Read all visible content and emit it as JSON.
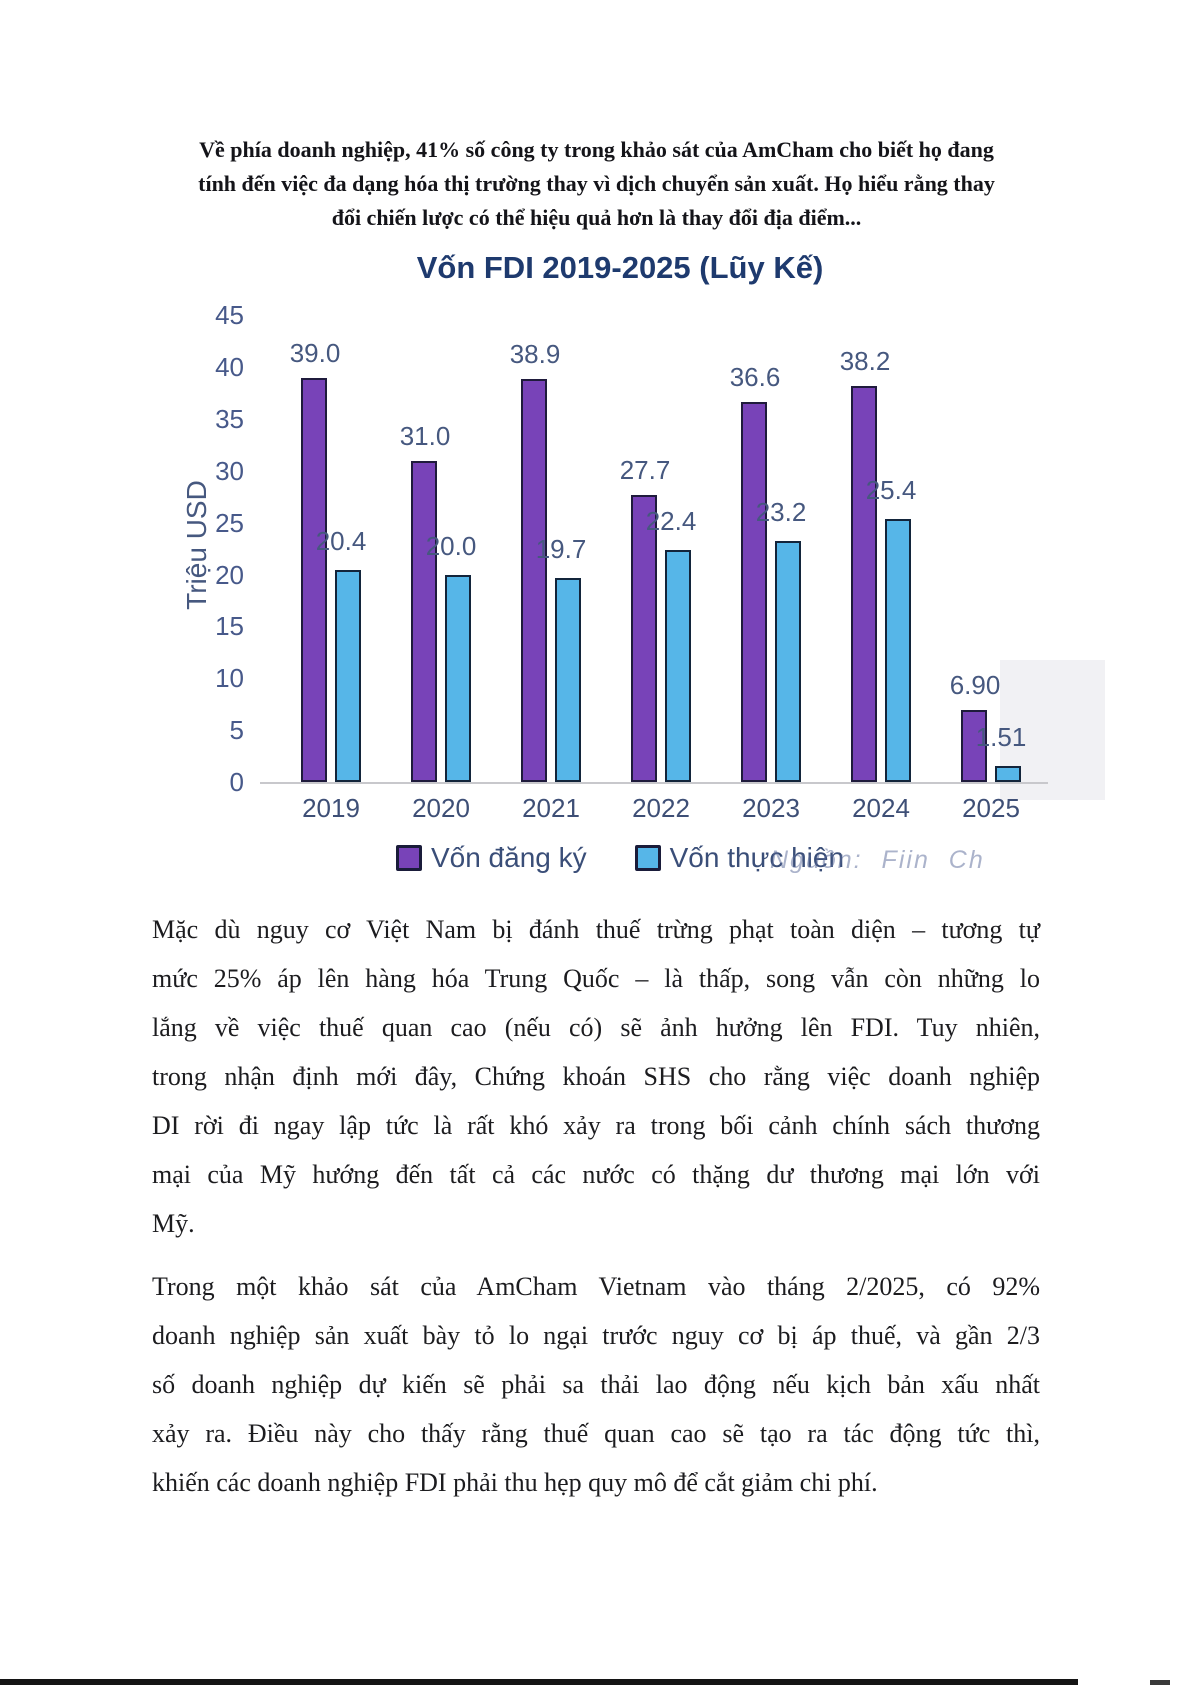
{
  "page": {
    "intro_lines": [
      "Về phía doanh nghiệp, 41% số công ty trong khảo sát của AmCham cho biết họ đang",
      "tính đến việc đa dạng hóa thị trường thay vì dịch chuyển sản xuất. Họ hiểu rằng thay",
      "đổi chiến lược có thể hiệu quả hơn là thay đổi địa điểm..."
    ],
    "paragraph1_lines": [
      "Mặc dù nguy cơ Việt Nam bị đánh thuế trừng phạt toàn diện – tương tự",
      "mức 25% áp lên hàng hóa Trung Quốc – là thấp, song vẫn còn những lo",
      "lắng về việc thuế quan cao (nếu có) sẽ ảnh hưởng lên FDI. Tuy nhiên,",
      "trong nhận định mới đây, Chứng khoán SHS cho rằng việc doanh nghiệp",
      "DI rời đi ngay lập tức là rất khó xảy ra trong bối cảnh chính sách thương",
      "mại của Mỹ hướng đến tất cả các nước có thặng dư thương mại lớn với",
      "Mỹ."
    ],
    "paragraph2_lines": [
      "Trong một khảo sát của AmCham Vietnam vào tháng 2/2025, có 92%",
      "doanh nghiệp sản xuất bày tỏ lo ngại trước nguy cơ bị áp thuế, và gần 2/3",
      "số doanh nghiệp dự kiến sẽ phải sa thải lao động nếu kịch bản xấu nhất",
      "xảy ra. Điều này cho thấy rằng thuế quan cao sẽ tạo ra tác động tức thì,",
      "khiến các doanh nghiệp FDI phải thu hẹp quy mô để cắt giảm chi phí."
    ]
  },
  "chart_data": {
    "type": "bar",
    "title": "Vốn FDI 2019-2025 (Lũy Kế)",
    "xlabel": "",
    "ylabel": "Triệu USD",
    "ylim": [
      0,
      45
    ],
    "ytick_step": 5,
    "grid": false,
    "legend_position": "bottom",
    "categories": [
      "2019",
      "2020",
      "2021",
      "2022",
      "2023",
      "2024",
      "2025"
    ],
    "series": [
      {
        "name": "Vốn đăng ký",
        "values": [
          39.0,
          31.0,
          38.9,
          27.7,
          36.6,
          38.2,
          6.9
        ],
        "labels": [
          "39.0",
          "31.0",
          "38.9",
          "27.7",
          "36.6",
          "38.2",
          "6.90"
        ],
        "color": "#7843B8",
        "border_color": "#1F1B3C"
      },
      {
        "name": "Vốn thực hiện",
        "values": [
          20.4,
          20.0,
          19.7,
          22.4,
          23.2,
          25.4,
          1.51
        ],
        "labels": [
          "20.4",
          "20.0",
          "19.7",
          "22.4",
          "23.2",
          "25.4",
          "1.51"
        ],
        "color": "#56B6E8",
        "border_color": "#13253B"
      }
    ],
    "source_note": "Nguồn: Fiin Ch"
  },
  "colors": {
    "title": "#1E3A6E",
    "tick_label": "#47598A",
    "data_label": "#46587F",
    "axis_line": "#C8C8CC",
    "body_text": "#1C1C1F",
    "source_note": "#5A6A99",
    "artifact_gray": "#F1F1F4",
    "bottom_bar": "#141414"
  }
}
